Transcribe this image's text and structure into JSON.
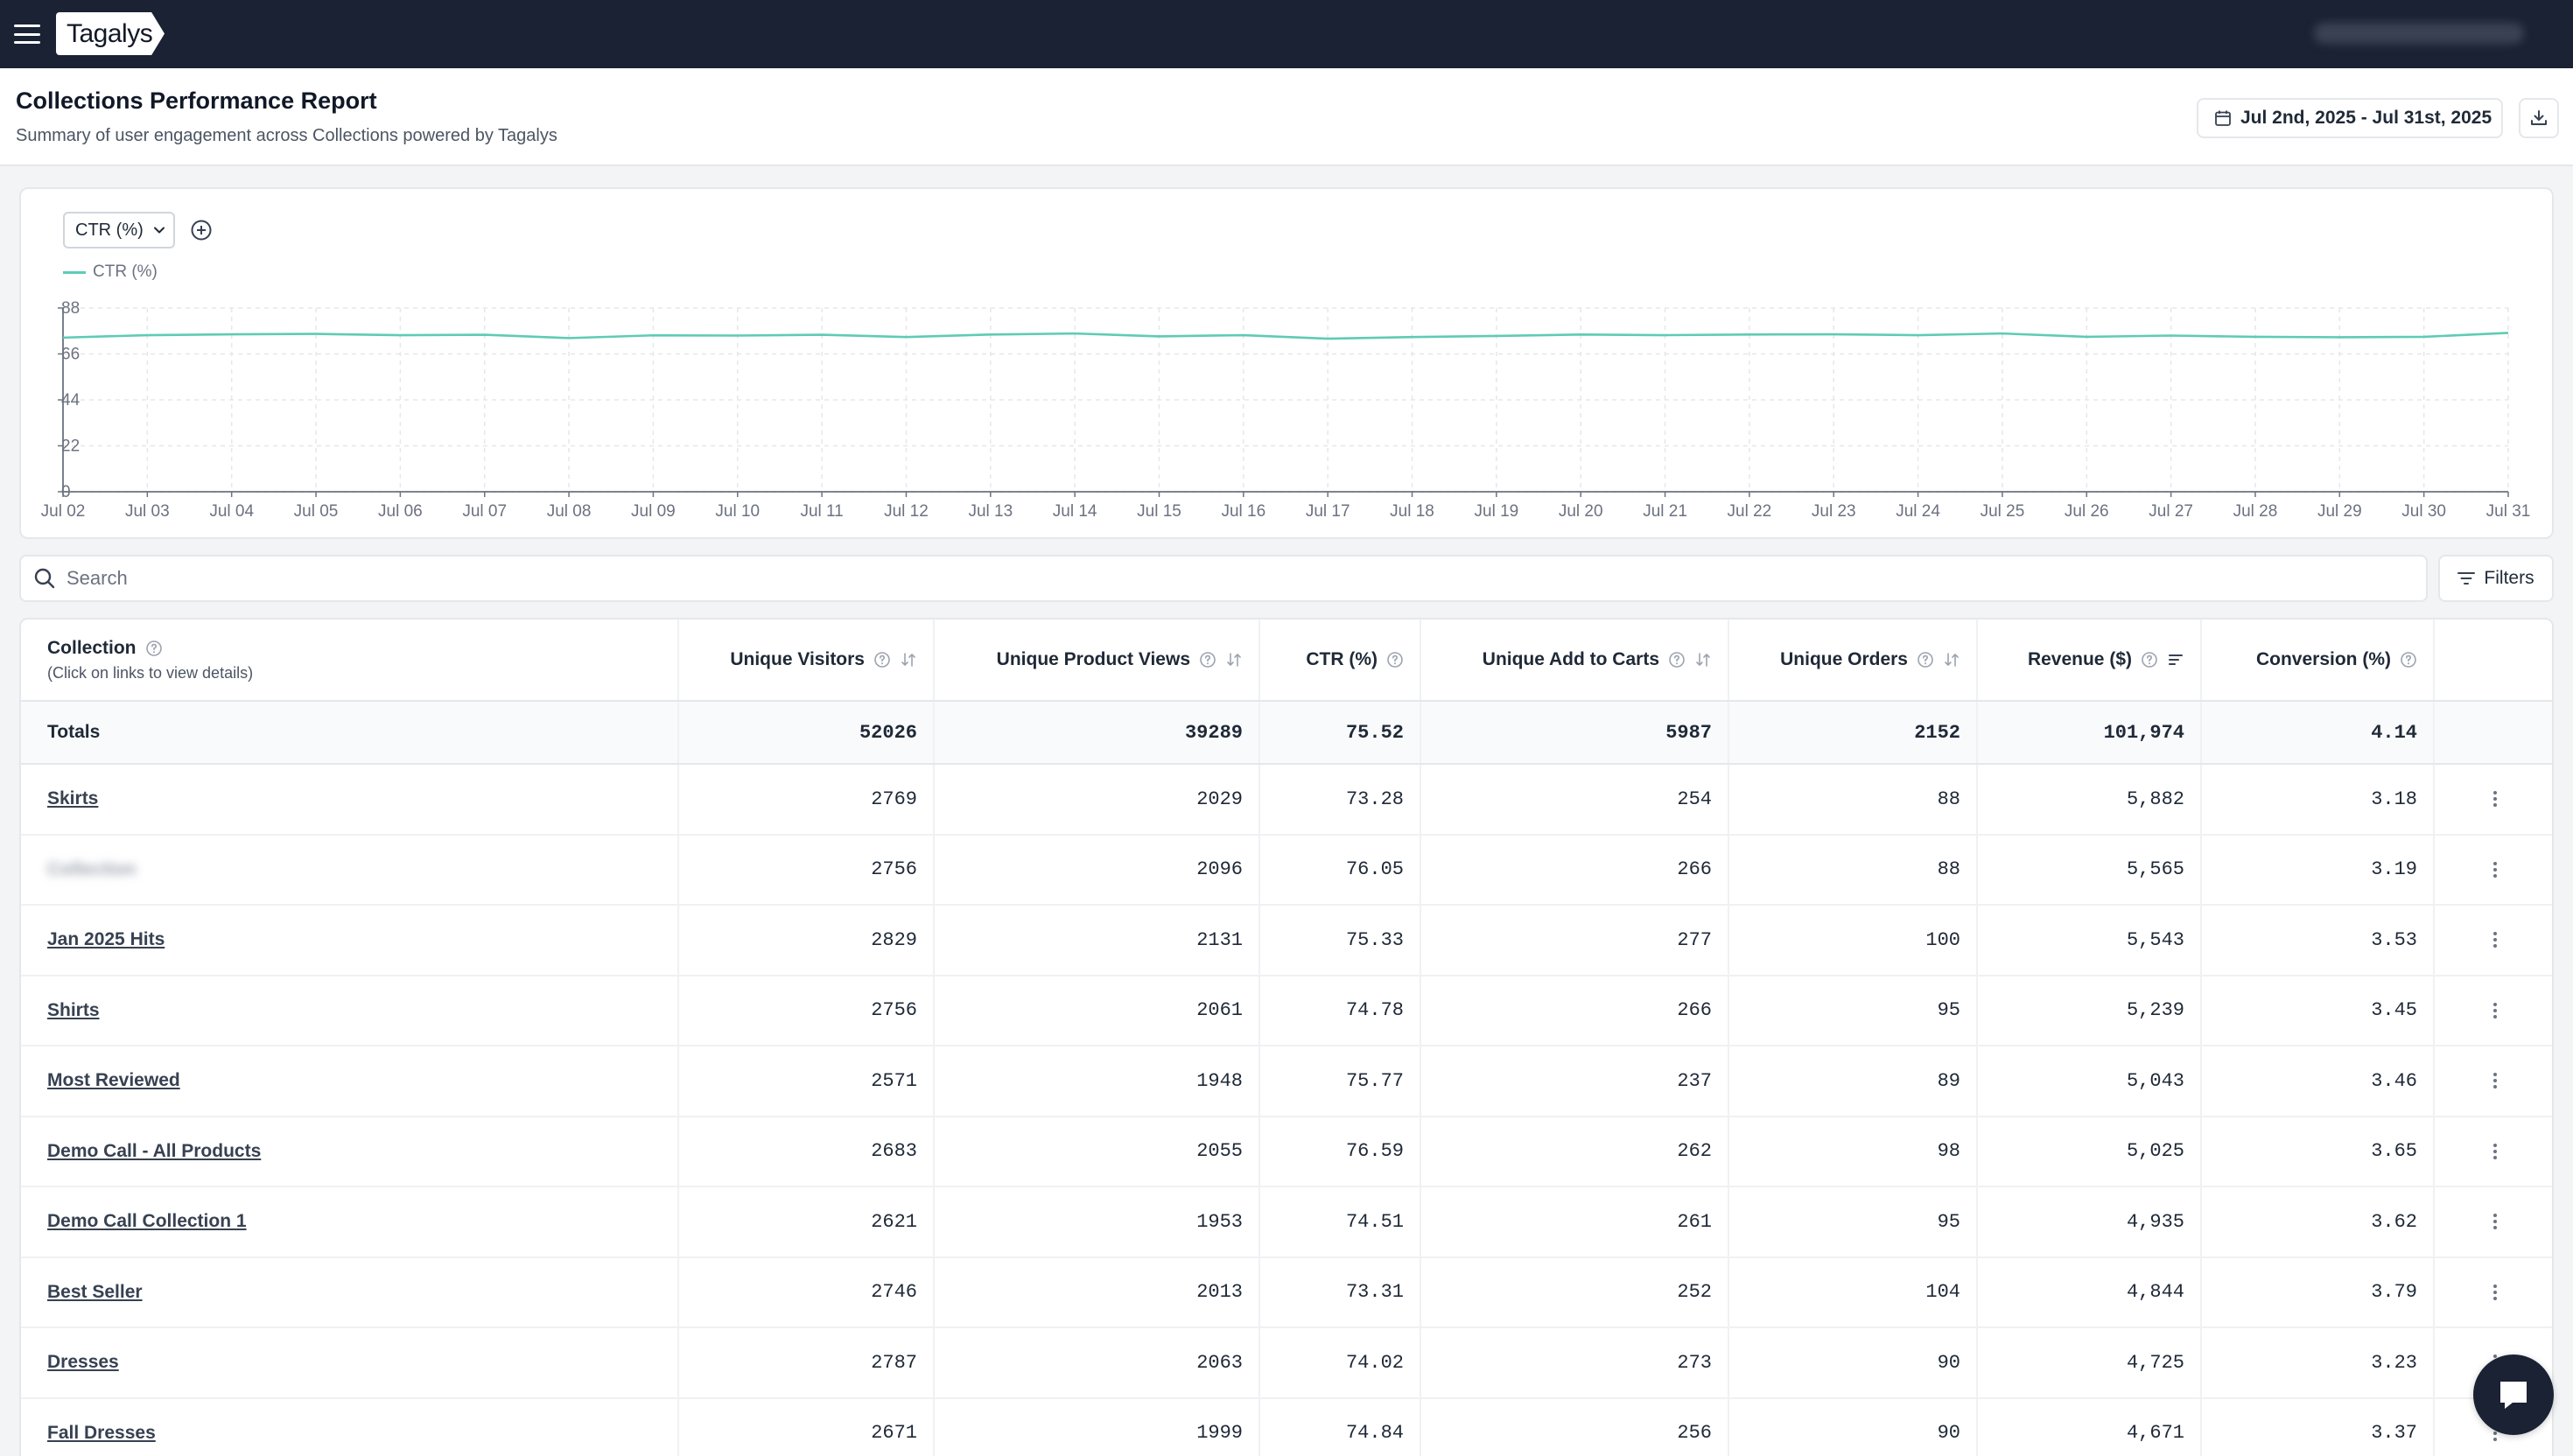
{
  "app": {
    "logo_text": "Tagalys"
  },
  "header": {
    "title": "Collections Performance Report",
    "subtitle": "Summary of user engagement across Collections powered by Tagalys",
    "date_range": "Jul 2nd, 2025 - Jul 31st, 2025"
  },
  "chart": {
    "metric_label": "CTR (%)",
    "legend_label": "CTR (%)",
    "line_color": "#5fcbb4"
  },
  "chart_data": {
    "type": "line",
    "x": [
      "Jul 02",
      "Jul 03",
      "Jul 04",
      "Jul 05",
      "Jul 06",
      "Jul 07",
      "Jul 08",
      "Jul 09",
      "Jul 10",
      "Jul 11",
      "Jul 12",
      "Jul 13",
      "Jul 14",
      "Jul 15",
      "Jul 16",
      "Jul 17",
      "Jul 18",
      "Jul 19",
      "Jul 20",
      "Jul 21",
      "Jul 22",
      "Jul 23",
      "Jul 24",
      "Jul 25",
      "Jul 26",
      "Jul 27",
      "Jul 28",
      "Jul 29",
      "Jul 30",
      "Jul 31"
    ],
    "series": [
      {
        "name": "CTR (%)",
        "values": [
          73.8,
          75.0,
          75.4,
          75.6,
          75.0,
          75.2,
          73.6,
          74.9,
          74.8,
          75.2,
          74.1,
          75.3,
          75.8,
          74.4,
          75.0,
          73.3,
          74.1,
          74.6,
          75.3,
          75.0,
          75.3,
          75.4,
          75.0,
          75.8,
          74.2,
          74.8,
          74.2,
          74.0,
          74.2,
          76.1
        ]
      }
    ],
    "yticks": [
      0,
      22,
      44,
      66,
      88
    ],
    "ylim": [
      0,
      88
    ],
    "grid": true,
    "legend": "top-left"
  },
  "search": {
    "placeholder": "Search"
  },
  "filters_label": "Filters",
  "table": {
    "collection_header": "Collection",
    "collection_subheader": "(Click on links to view details)",
    "columns": [
      "Unique Visitors",
      "Unique Product Views",
      "CTR (%)",
      "Unique Add to Carts",
      "Unique Orders",
      "Revenue ($)",
      "Conversion (%)"
    ],
    "totals_label": "Totals",
    "totals": [
      "52026",
      "39289",
      "75.52",
      "5987",
      "2152",
      "101,974",
      "4.14"
    ],
    "rows": [
      {
        "name": "Skirts",
        "values": [
          "2769",
          "2029",
          "73.28",
          "254",
          "88",
          "5,882",
          "3.18"
        ]
      },
      {
        "name": "Collection",
        "values": [
          "2756",
          "2096",
          "76.05",
          "266",
          "88",
          "5,565",
          "3.19"
        ]
      },
      {
        "name": "Jan 2025 Hits",
        "values": [
          "2829",
          "2131",
          "75.33",
          "277",
          "100",
          "5,543",
          "3.53"
        ]
      },
      {
        "name": "Shirts",
        "values": [
          "2756",
          "2061",
          "74.78",
          "266",
          "95",
          "5,239",
          "3.45"
        ]
      },
      {
        "name": "Most Reviewed",
        "values": [
          "2571",
          "1948",
          "75.77",
          "237",
          "89",
          "5,043",
          "3.46"
        ]
      },
      {
        "name": "Demo Call - All Products",
        "values": [
          "2683",
          "2055",
          "76.59",
          "262",
          "98",
          "5,025",
          "3.65"
        ]
      },
      {
        "name": "Demo Call Collection 1",
        "values": [
          "2621",
          "1953",
          "74.51",
          "261",
          "95",
          "4,935",
          "3.62"
        ]
      },
      {
        "name": "Best Seller",
        "values": [
          "2746",
          "2013",
          "73.31",
          "252",
          "104",
          "4,844",
          "3.79"
        ]
      },
      {
        "name": "Dresses",
        "values": [
          "2787",
          "2063",
          "74.02",
          "273",
          "90",
          "4,725",
          "3.23"
        ]
      },
      {
        "name": "Fall Dresses",
        "values": [
          "2671",
          "1999",
          "74.84",
          "256",
          "90",
          "4,671",
          "3.37"
        ]
      }
    ]
  }
}
